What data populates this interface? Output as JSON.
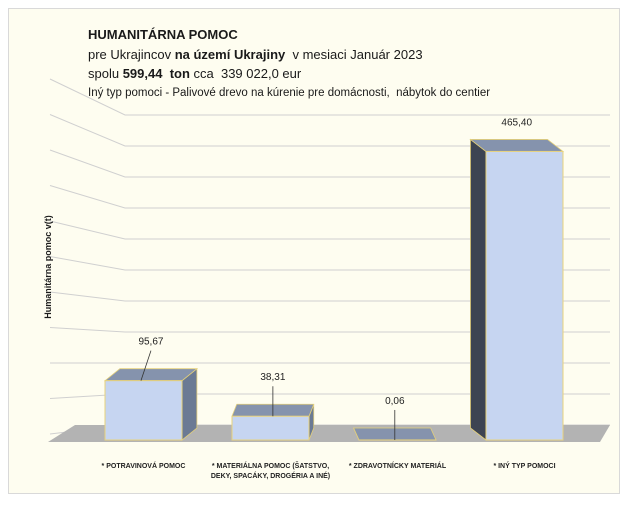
{
  "chart_data": {
    "type": "bar",
    "title": "HUMANITÁRNA POMOC",
    "subtitle_lines": [
      [
        "pre Ukrajincov ",
        "na území Ukrajiny",
        "  v mesiaci Január 2023"
      ],
      [
        "spolu ",
        "599,44  ton",
        " cca  339 022,0 eur"
      ]
    ],
    "note": "Iný typ pomoci - Palivové drevo na kúrenie pre domácnosti,  nábytok do centier",
    "ylabel": "Humanitárna pomoc v(t)",
    "categories": [
      "* POTRAVINOVÁ POMOC",
      "* MATERIÁLNA POMOC (ŠATSTVO, DEKY, SPACÁKY, DROGÉRIA A INÉ)",
      "* ZDRAVOTNÍCKY MATERIÁL",
      "* INÝ TYP POMOCI"
    ],
    "values": [
      95.67,
      38.31,
      0.06,
      465.4
    ],
    "value_labels": [
      "95,67",
      "38,31",
      "0,06",
      "465,40"
    ],
    "color": "#c6d5f1",
    "ylim": [
      0,
      500
    ],
    "yticks": [
      0,
      50,
      100,
      150,
      200,
      250,
      300,
      350,
      400,
      450,
      500
    ],
    "grid": true
  }
}
